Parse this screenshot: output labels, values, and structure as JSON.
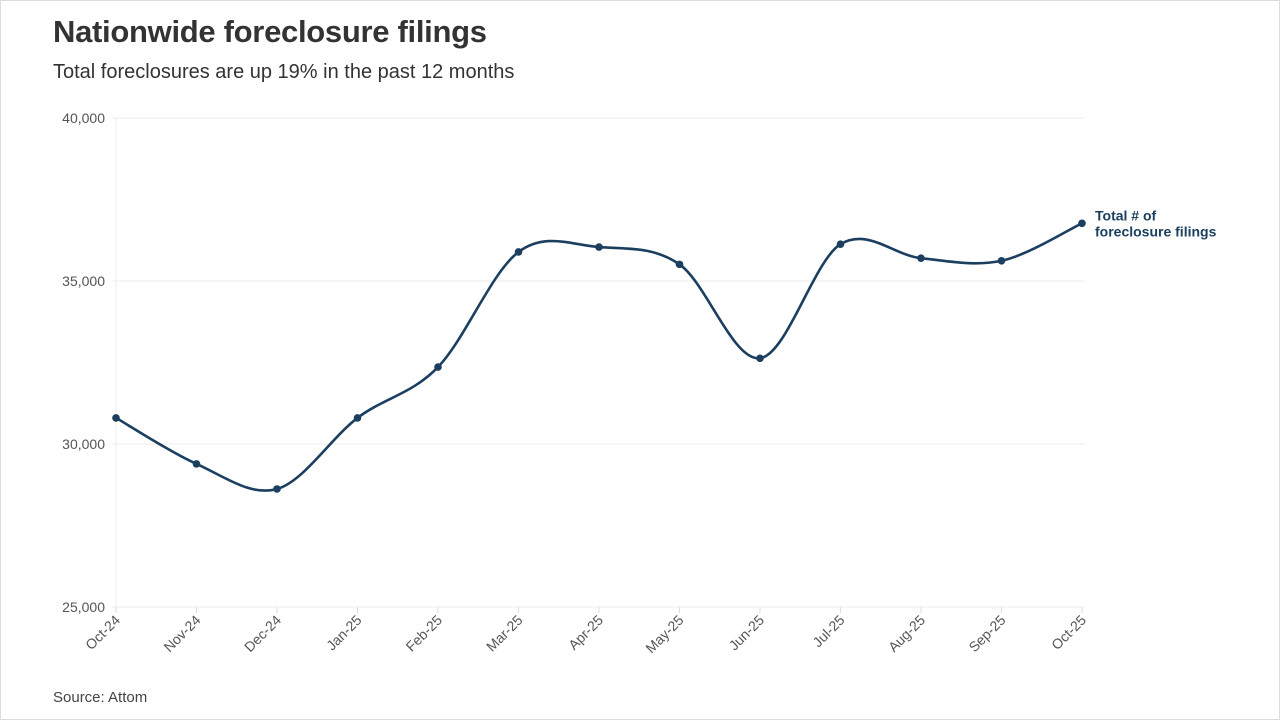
{
  "header": {
    "title": "Nationwide foreclosure filings",
    "subtitle": "Total foreclosures are up 19% in the past 12 months"
  },
  "footer": {
    "source": "Source: Attom"
  },
  "colors": {
    "line": "#1c3f60",
    "grid": "#ececec",
    "text": "#333333",
    "axis_text": "#555555"
  },
  "chart_data": {
    "type": "line",
    "title": "Nationwide foreclosure filings",
    "subtitle": "Total foreclosures are up 19% in the past 12 months",
    "xlabel": "",
    "ylabel": "",
    "categories": [
      "Oct-24",
      "Nov-24",
      "Dec-24",
      "Jan-25",
      "Feb-25",
      "Mar-25",
      "Apr-25",
      "May-25",
      "Jun-25",
      "Jul-25",
      "Aug-25",
      "Sep-25",
      "Oct-25"
    ],
    "series": [
      {
        "name": "Total # of foreclosure filings",
        "label_lines": [
          "Total # of",
          "foreclosure filings"
        ],
        "values": [
          30800,
          29390,
          28620,
          30800,
          32360,
          35890,
          36040,
          35510,
          32630,
          36130,
          35700,
          35620,
          36770
        ]
      }
    ],
    "ylim": [
      25000,
      40000
    ],
    "yticks": [
      25000,
      30000,
      35000,
      40000
    ],
    "ytick_labels": [
      "25,000",
      "30,000",
      "35,000",
      "40,000"
    ],
    "grid": true,
    "legend": "direct label at end of line",
    "source": "Source: Attom"
  }
}
